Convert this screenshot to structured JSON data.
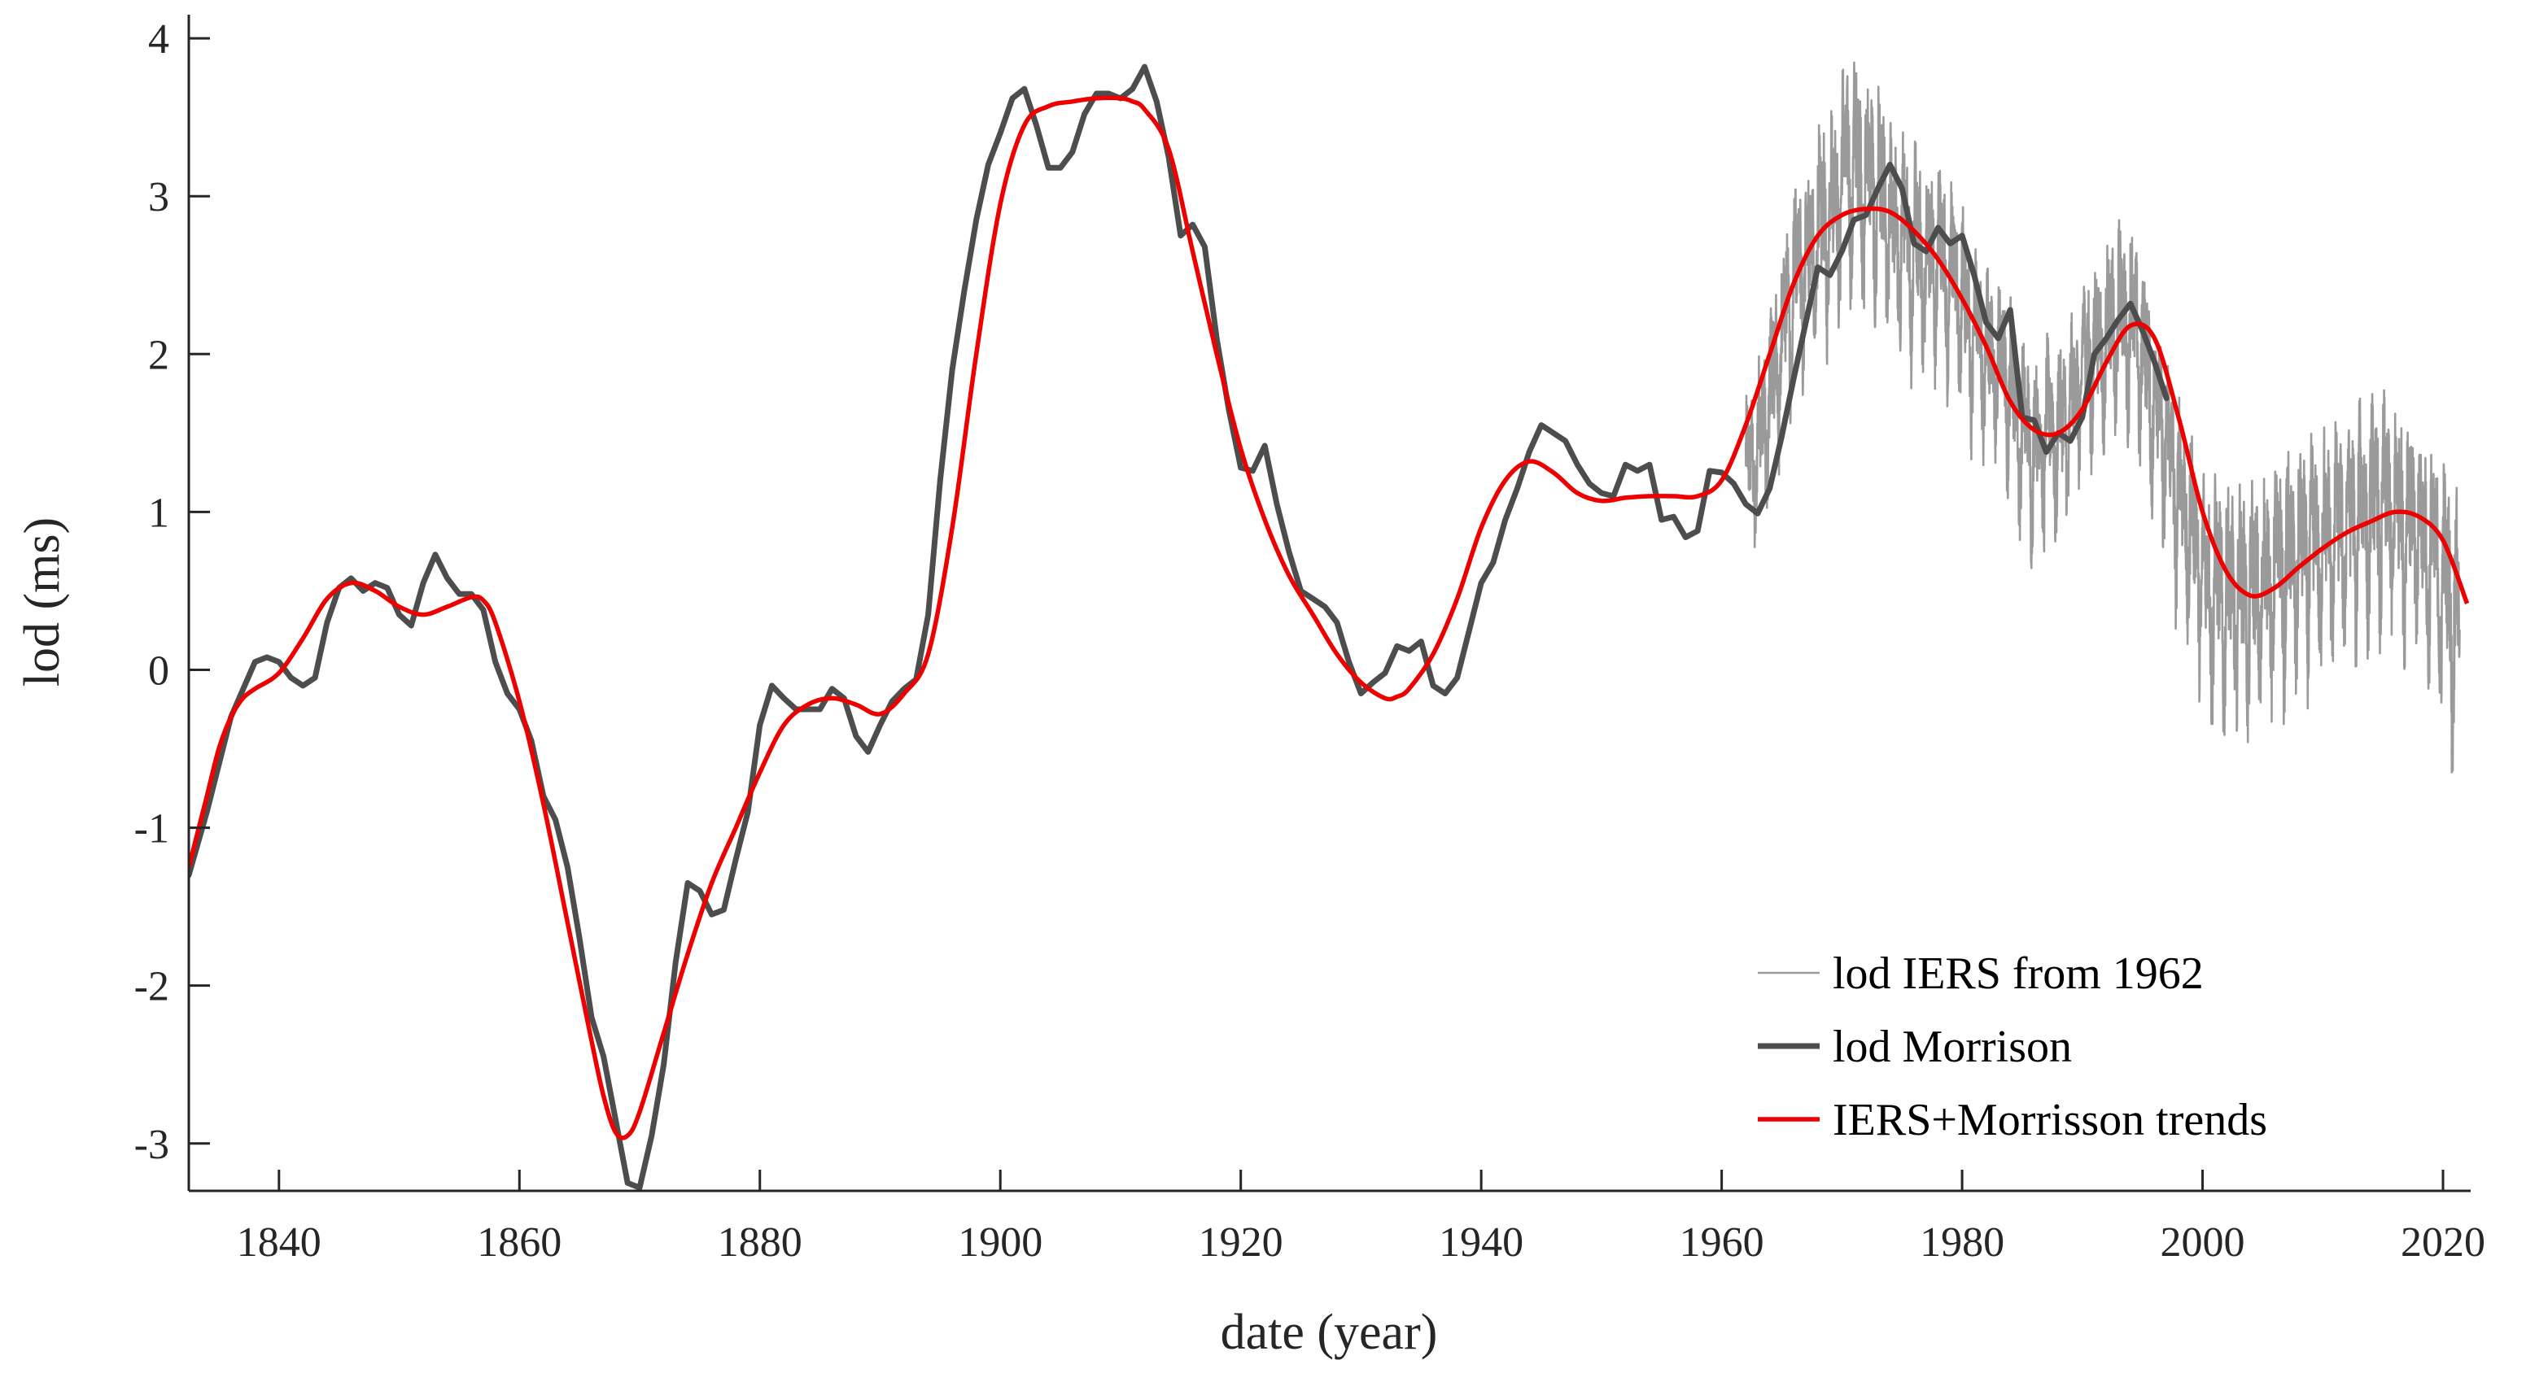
{
  "chart_data": {
    "type": "line",
    "xlabel": "date (year)",
    "ylabel": "lod (ms)",
    "xlim": [
      1832.5,
      2022.3
    ],
    "ylim": [
      -3.3,
      4.15
    ],
    "xticks": [
      1840,
      1860,
      1880,
      1900,
      1920,
      1940,
      1960,
      1980,
      2000,
      2020
    ],
    "yticks": [
      -3,
      -2,
      -1,
      0,
      1,
      2,
      3,
      4
    ],
    "xtick_labels": [
      "1840",
      "1860",
      "1880",
      "1900",
      "1920",
      "1940",
      "1960",
      "1980",
      "2000",
      "2020"
    ],
    "ytick_labels": [
      "-3",
      "-2",
      "-1",
      "0",
      "1",
      "2",
      "3",
      "4"
    ],
    "grid": false,
    "legend_position": "bottom-right",
    "series": [
      {
        "name": "lod IERS from 1962",
        "color": "#9a9a9a",
        "style": "thin",
        "x": [
          1962,
          1963,
          1964,
          1965,
          1966,
          1967,
          1968,
          1969,
          1970,
          1971,
          1972,
          1973,
          1974,
          1975,
          1976,
          1977,
          1978,
          1979,
          1980,
          1981,
          1982,
          1983,
          1984,
          1985,
          1986,
          1987,
          1988,
          1989,
          1990,
          1991,
          1992,
          1993,
          1994,
          1995,
          1996,
          1997,
          1998,
          1999,
          2000,
          2001,
          2002,
          2003,
          2004,
          2005,
          2006,
          2007,
          2008,
          2009,
          2010,
          2011,
          2012,
          2013,
          2014,
          2015,
          2016,
          2017,
          2018,
          2019,
          2020,
          2021
        ],
        "y": [
          1.2,
          1.4,
          1.7,
          2.1,
          2.4,
          2.6,
          2.7,
          2.9,
          3.1,
          3.2,
          3.1,
          3.0,
          2.8,
          2.7,
          2.7,
          2.6,
          2.6,
          2.5,
          2.3,
          2.1,
          2.0,
          1.9,
          1.8,
          1.5,
          1.4,
          1.5,
          1.5,
          1.6,
          1.9,
          2.0,
          2.1,
          2.2,
          2.2,
          2.0,
          1.7,
          1.4,
          1.1,
          0.9,
          0.6,
          0.5,
          0.45,
          0.45,
          0.45,
          0.5,
          0.6,
          0.65,
          0.7,
          0.75,
          0.8,
          0.85,
          0.9,
          0.95,
          1.0,
          1.0,
          1.0,
          0.95,
          0.85,
          0.7,
          0.55,
          0.3
        ],
        "amplitude": [
          0.5,
          0.55,
          0.6,
          0.65,
          0.65,
          0.7,
          0.7,
          0.7,
          0.75,
          0.75,
          0.75,
          0.75,
          0.7,
          0.7,
          0.7,
          0.65,
          0.65,
          0.65,
          0.65,
          0.6,
          0.6,
          0.6,
          0.6,
          0.6,
          0.6,
          0.6,
          0.6,
          0.6,
          0.6,
          0.6,
          0.6,
          0.65,
          0.65,
          0.65,
          0.65,
          0.65,
          0.7,
          0.7,
          0.7,
          0.75,
          0.75,
          0.75,
          0.75,
          0.75,
          0.75,
          0.75,
          0.75,
          0.75,
          0.75,
          0.7,
          0.7,
          0.75,
          0.75,
          0.75,
          0.75,
          0.75,
          0.75,
          0.75,
          0.8,
          0.85
        ]
      },
      {
        "name": "lod Morrison",
        "color": "#4d4d4d",
        "style": "thick",
        "x": [
          1832.5,
          1834,
          1836,
          1838,
          1839,
          1840,
          1841,
          1842,
          1843,
          1844,
          1845,
          1846,
          1847,
          1848,
          1849,
          1850,
          1851,
          1852,
          1853,
          1854,
          1855,
          1856,
          1857,
          1858,
          1859,
          1860,
          1861,
          1862,
          1863,
          1864,
          1865,
          1866,
          1867,
          1868,
          1869,
          1870,
          1871,
          1872,
          1873,
          1874,
          1875,
          1876,
          1877,
          1878,
          1879,
          1880,
          1881,
          1882,
          1883,
          1884,
          1885,
          1886,
          1887,
          1888,
          1889,
          1890,
          1891,
          1892,
          1893,
          1894,
          1895,
          1896,
          1897,
          1898,
          1899,
          1900,
          1901,
          1902,
          1903,
          1904,
          1905,
          1906,
          1907,
          1908,
          1909,
          1910,
          1911,
          1912,
          1913,
          1914,
          1915,
          1916,
          1917,
          1918,
          1919,
          1920,
          1921,
          1922,
          1923,
          1924,
          1925,
          1926,
          1927,
          1928,
          1929,
          1930,
          1931,
          1932,
          1933,
          1934,
          1935,
          1936,
          1937,
          1938,
          1939,
          1940,
          1941,
          1942,
          1943,
          1944,
          1945,
          1946,
          1947,
          1948,
          1949,
          1950,
          1951,
          1952,
          1953,
          1954,
          1955,
          1956,
          1957,
          1958,
          1959,
          1960,
          1961,
          1962,
          1963,
          1964,
          1965,
          1966,
          1967,
          1968,
          1969,
          1970,
          1971,
          1972,
          1973,
          1974,
          1975,
          1976,
          1977,
          1978,
          1979,
          1980,
          1981,
          1982,
          1983,
          1984,
          1985,
          1986,
          1987,
          1988,
          1989,
          1990,
          1991,
          1992,
          1993,
          1994,
          1995,
          1996,
          1997
        ],
        "y": [
          -1.3,
          -0.9,
          -0.3,
          0.05,
          0.08,
          0.05,
          -0.05,
          -0.1,
          -0.05,
          0.3,
          0.52,
          0.58,
          0.5,
          0.55,
          0.52,
          0.35,
          0.28,
          0.55,
          0.73,
          0.58,
          0.48,
          0.48,
          0.38,
          0.05,
          -0.15,
          -0.25,
          -0.45,
          -0.8,
          -0.95,
          -1.25,
          -1.7,
          -2.2,
          -2.45,
          -2.85,
          -3.25,
          -3.28,
          -2.95,
          -2.5,
          -1.85,
          -1.35,
          -1.4,
          -1.55,
          -1.52,
          -1.2,
          -0.9,
          -0.35,
          -0.1,
          -0.18,
          -0.25,
          -0.25,
          -0.25,
          -0.12,
          -0.18,
          -0.42,
          -0.52,
          -0.35,
          -0.2,
          -0.12,
          -0.06,
          0.35,
          1.2,
          1.9,
          2.4,
          2.85,
          3.2,
          3.4,
          3.62,
          3.68,
          3.45,
          3.18,
          3.18,
          3.28,
          3.52,
          3.65,
          3.65,
          3.62,
          3.68,
          3.82,
          3.6,
          3.25,
          2.75,
          2.82,
          2.68,
          2.1,
          1.65,
          1.28,
          1.26,
          1.42,
          1.05,
          0.75,
          0.5,
          0.45,
          0.4,
          0.3,
          0.05,
          -0.15,
          -0.08,
          -0.02,
          0.15,
          0.12,
          0.18,
          -0.1,
          -0.15,
          -0.05,
          0.25,
          0.55,
          0.68,
          0.95,
          1.15,
          1.38,
          1.55,
          1.5,
          1.45,
          1.3,
          1.18,
          1.12,
          1.1,
          1.3,
          1.26,
          1.3,
          0.95,
          0.97,
          0.84,
          0.88,
          1.26,
          1.25,
          1.18,
          1.05,
          0.99,
          1.15,
          1.48,
          1.85,
          2.2,
          2.55,
          2.5,
          2.65,
          2.85,
          2.88,
          3.05,
          3.2,
          3.05,
          2.7,
          2.65,
          2.8,
          2.7,
          2.75,
          2.5,
          2.2,
          2.1,
          2.28,
          1.6,
          1.58,
          1.38,
          1.5,
          1.45,
          1.6,
          2.0,
          2.1,
          2.22,
          2.32,
          2.15,
          1.95,
          1.72
        ]
      },
      {
        "name": "IERS+Morrisson trends",
        "color": "#ee0000",
        "style": "medium",
        "x": [
          1832.5,
          1834,
          1835,
          1836,
          1837,
          1838,
          1840,
          1842,
          1844,
          1846,
          1848,
          1850,
          1852,
          1854,
          1856,
          1857,
          1858,
          1860,
          1862,
          1864,
          1866,
          1867,
          1868,
          1869,
          1870,
          1872,
          1874,
          1876,
          1878,
          1880,
          1882,
          1884,
          1886,
          1888,
          1890,
          1892,
          1894,
          1896,
          1898,
          1900,
          1902,
          1904,
          1906,
          1908,
          1910,
          1911,
          1912,
          1914,
          1916,
          1918,
          1920,
          1922,
          1924,
          1926,
          1928,
          1930,
          1932,
          1933,
          1934,
          1936,
          1938,
          1940,
          1942,
          1944,
          1946,
          1948,
          1950,
          1952,
          1954,
          1956,
          1958,
          1960,
          1962,
          1964,
          1966,
          1968,
          1970,
          1972,
          1974,
          1976,
          1978,
          1980,
          1982,
          1984,
          1986,
          1988,
          1990,
          1992,
          1994,
          1996,
          1998,
          2000,
          2002,
          2004,
          2006,
          2008,
          2010,
          2012,
          2014,
          2016,
          2018,
          2020,
          2022
        ],
        "y": [
          -1.25,
          -0.8,
          -0.5,
          -0.3,
          -0.18,
          -0.12,
          -0.02,
          0.2,
          0.45,
          0.55,
          0.5,
          0.4,
          0.35,
          0.4,
          0.46,
          0.44,
          0.3,
          -0.2,
          -0.85,
          -1.6,
          -2.35,
          -2.7,
          -2.93,
          -2.95,
          -2.8,
          -2.3,
          -1.8,
          -1.35,
          -1.0,
          -0.65,
          -0.35,
          -0.22,
          -0.18,
          -0.22,
          -0.28,
          -0.15,
          0.1,
          0.9,
          2.0,
          2.95,
          3.45,
          3.57,
          3.6,
          3.62,
          3.62,
          3.6,
          3.55,
          3.3,
          2.65,
          2.0,
          1.4,
          0.95,
          0.6,
          0.35,
          0.1,
          -0.08,
          -0.18,
          -0.17,
          -0.12,
          0.1,
          0.45,
          0.9,
          1.2,
          1.32,
          1.25,
          1.12,
          1.07,
          1.09,
          1.1,
          1.1,
          1.1,
          1.2,
          1.55,
          2.0,
          2.45,
          2.75,
          2.88,
          2.92,
          2.9,
          2.78,
          2.6,
          2.35,
          2.05,
          1.7,
          1.52,
          1.5,
          1.65,
          1.95,
          2.18,
          2.1,
          1.6,
          1.0,
          0.62,
          0.47,
          0.52,
          0.65,
          0.77,
          0.87,
          0.94,
          1.0,
          0.97,
          0.82,
          0.42
        ]
      }
    ]
  }
}
